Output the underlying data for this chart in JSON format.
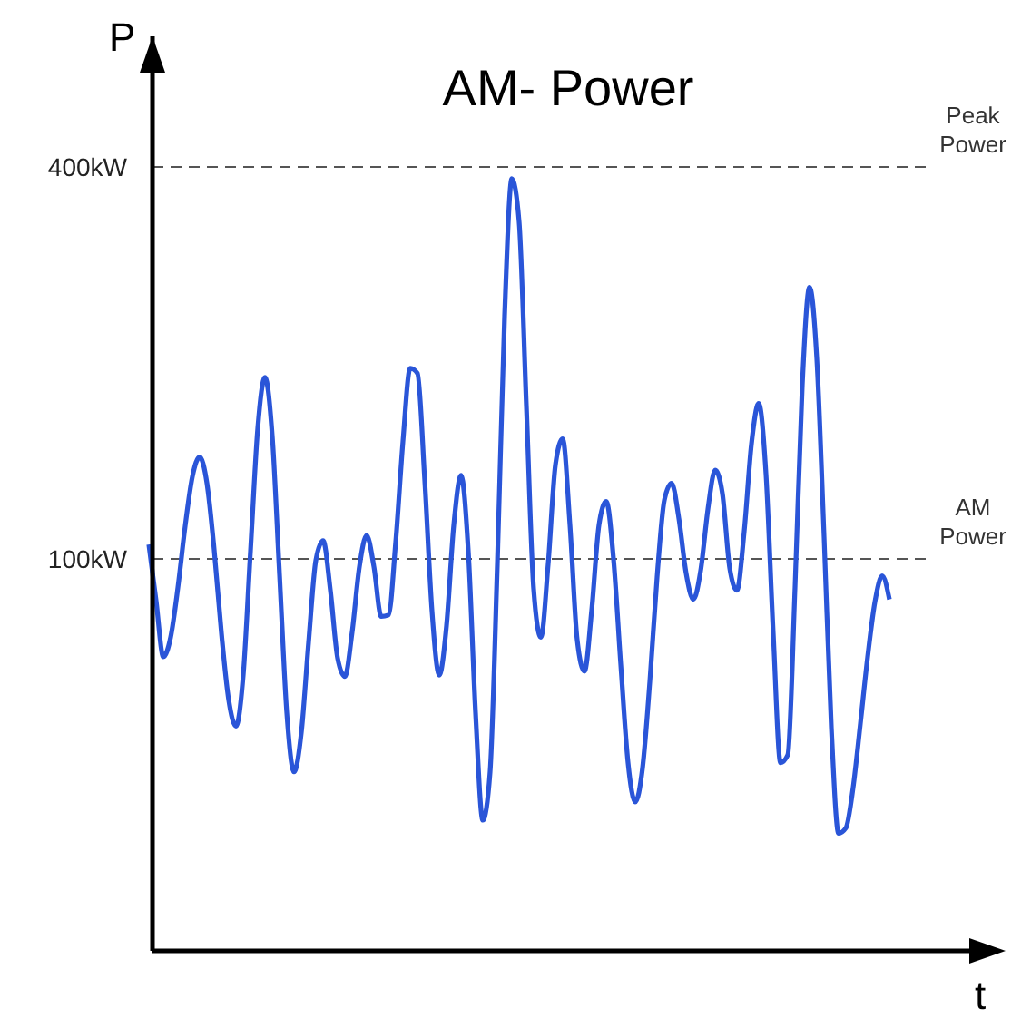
{
  "chart_data": {
    "type": "line",
    "title": "AM- Power",
    "xlabel": "t",
    "ylabel": "P",
    "categories": [
      null,
      null,
      null,
      null,
      null,
      null,
      null,
      null,
      null,
      null,
      null,
      null,
      null,
      null,
      null,
      null,
      null,
      null,
      null,
      null,
      null,
      null,
      null,
      null,
      null,
      null,
      null,
      null,
      null,
      null,
      null,
      null,
      null,
      null,
      null,
      null,
      null,
      null,
      null,
      null,
      null,
      null,
      null,
      null,
      null,
      null,
      null,
      null,
      null,
      null,
      null,
      null,
      null,
      null,
      null,
      null,
      null,
      null,
      null,
      null,
      null,
      null,
      null,
      null,
      null,
      null,
      null,
      null,
      null,
      null,
      null,
      null,
      null,
      null,
      null,
      null,
      null,
      null,
      null,
      null,
      null,
      null,
      null,
      null,
      null,
      null,
      null,
      null,
      null,
      null,
      null,
      null,
      null,
      null,
      null,
      null,
      null,
      null,
      null,
      null,
      null,
      null,
      null
    ],
    "series": [
      {
        "color": "#2a55d8",
        "values": [
          111,
          68,
          25,
          40,
          78,
          125,
          163,
          178,
          158,
          107,
          43,
          -8,
          -28,
          11,
          106,
          200,
          239,
          194,
          88,
          -18,
          -63,
          -33,
          36,
          99,
          114,
          76,
          24,
          10,
          44,
          94,
          118,
          94,
          56,
          57,
          113,
          190,
          246,
          242,
          160,
          60,
          11,
          49,
          126,
          164,
          106,
          -18,
          -100,
          -63,
          96,
          286,
          391,
          358,
          217,
          77,
          40,
          96,
          172,
          192,
          126,
          38,
          14,
          61,
          126,
          144,
          100,
          19,
          -56,
          -86,
          -60,
          6,
          86,
          145,
          158,
          131,
          89,
          69,
          91,
          138,
          168,
          150,
          93,
          76,
          121,
          188,
          219,
          165,
          43,
          -56,
          -50,
          78,
          233,
          308,
          253,
          117,
          -29,
          -110,
          -106,
          -75,
          -26,
          25,
          67,
          87,
          69
        ]
      }
    ],
    "ylim": [
      -200,
      500
    ],
    "yticks": [
      {
        "value": 100,
        "label": "100kW"
      },
      {
        "value": 400,
        "label": "400kW"
      }
    ],
    "tick_labels": "y",
    "grid": false,
    "line_style": "solid",
    "ref_lines": [
      {
        "axis": "y",
        "value": 400,
        "label": "Peak Power",
        "color": "#555555",
        "line_style": "dashed"
      },
      {
        "axis": "y",
        "value": 100,
        "label": "AM Power",
        "color": "#555555",
        "line_style": "dashed"
      }
    ]
  }
}
